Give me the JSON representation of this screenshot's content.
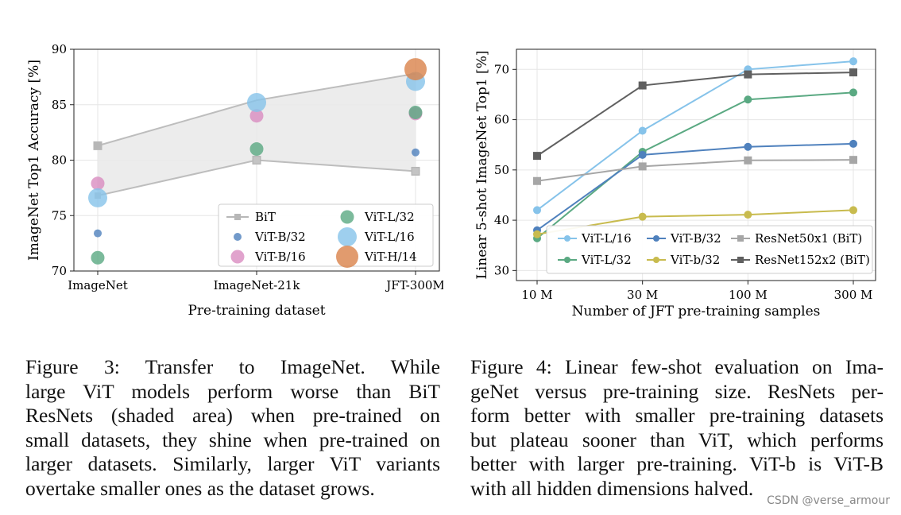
{
  "chart_data": [
    {
      "type": "scatter",
      "title": "",
      "xlabel": "Pre-training dataset",
      "ylabel": "ImageNet Top1 Accuracy [%]",
      "categories": [
        "ImageNet",
        "ImageNet-21k",
        "JFT-300M"
      ],
      "ylim": [
        70,
        90
      ],
      "yticks": [
        70,
        75,
        80,
        85,
        90
      ],
      "grid": true,
      "legend_position": "bottom-right",
      "shaded_area": "BiT ResNets range",
      "bit_band": {
        "upper": [
          81.3,
          85.4,
          87.8
        ],
        "lower": [
          76.8,
          80.0,
          79.0
        ]
      },
      "series": [
        {
          "name": "BiT",
          "style": "line-square",
          "color": "#9e9e9e",
          "values": [
            81.3,
            80.0,
            79.0
          ]
        },
        {
          "name": "ViT-B/32",
          "color": "#4f81bd",
          "size": "small",
          "values": [
            73.4,
            null,
            80.7
          ]
        },
        {
          "name": "ViT-B/16",
          "color": "#d98cc1",
          "size": "medium",
          "values": [
            77.9,
            84.0,
            84.2
          ]
        },
        {
          "name": "ViT-L/32",
          "color": "#5aa982",
          "size": "medium",
          "values": [
            71.2,
            81.0,
            84.3
          ]
        },
        {
          "name": "ViT-L/16",
          "color": "#86c3ea",
          "size": "large",
          "values": [
            76.6,
            85.2,
            87.1
          ]
        },
        {
          "name": "ViT-H/14",
          "color": "#d9824a",
          "size": "xlarge",
          "values": [
            null,
            null,
            88.2
          ]
        }
      ]
    },
    {
      "type": "line",
      "title": "",
      "xlabel": "Number of JFT pre-training samples",
      "ylabel": "Linear 5-shot ImageNet Top1 [%]",
      "categories": [
        "10 M",
        "30 M",
        "100 M",
        "300 M"
      ],
      "ylim": [
        28,
        74
      ],
      "yticks": [
        30,
        40,
        50,
        60,
        70
      ],
      "grid": true,
      "legend_position": "bottom-right",
      "series": [
        {
          "name": "ViT-L/16",
          "color": "#86c3ea",
          "marker": "circle",
          "values": [
            42.0,
            57.8,
            70.0,
            71.6
          ]
        },
        {
          "name": "ViT-L/32",
          "color": "#5aa982",
          "marker": "circle",
          "values": [
            36.4,
            53.6,
            64.0,
            65.4
          ]
        },
        {
          "name": "ViT-B/32",
          "color": "#4f81bd",
          "marker": "circle",
          "values": [
            38.0,
            53.0,
            54.6,
            55.2
          ]
        },
        {
          "name": "ViT-b/32",
          "color": "#c8bb4e",
          "marker": "circle",
          "values": [
            37.2,
            40.7,
            41.1,
            42.0
          ]
        },
        {
          "name": "ResNet50x1 (BiT)",
          "color": "#a6a6a6",
          "marker": "square",
          "values": [
            47.8,
            50.7,
            51.9,
            52.0
          ]
        },
        {
          "name": "ResNet152x2 (BiT)",
          "color": "#606060",
          "marker": "square",
          "values": [
            52.8,
            66.8,
            69.0,
            69.4
          ]
        }
      ]
    }
  ],
  "captions": {
    "fig3": [
      "Figure 3:  Transfer to ImageNet.  While",
      "large ViT models perform worse than BiT",
      "ResNets (shaded area) when pre-trained on",
      "small datasets, they shine when pre-trained on",
      "larger datasets.  Similarly, larger ViT variants",
      "overtake smaller ones as the dataset grows."
    ],
    "fig4": [
      "Figure 4: Linear few-shot evaluation on Ima-",
      "geNet versus pre-training size.  ResNets per-",
      "form better with smaller pre-training datasets",
      "but plateau sooner than ViT, which performs",
      "better with larger pre-training.  ViT-b is ViT-B",
      "with all hidden dimensions halved."
    ]
  },
  "watermark": "CSDN @verse_armour"
}
